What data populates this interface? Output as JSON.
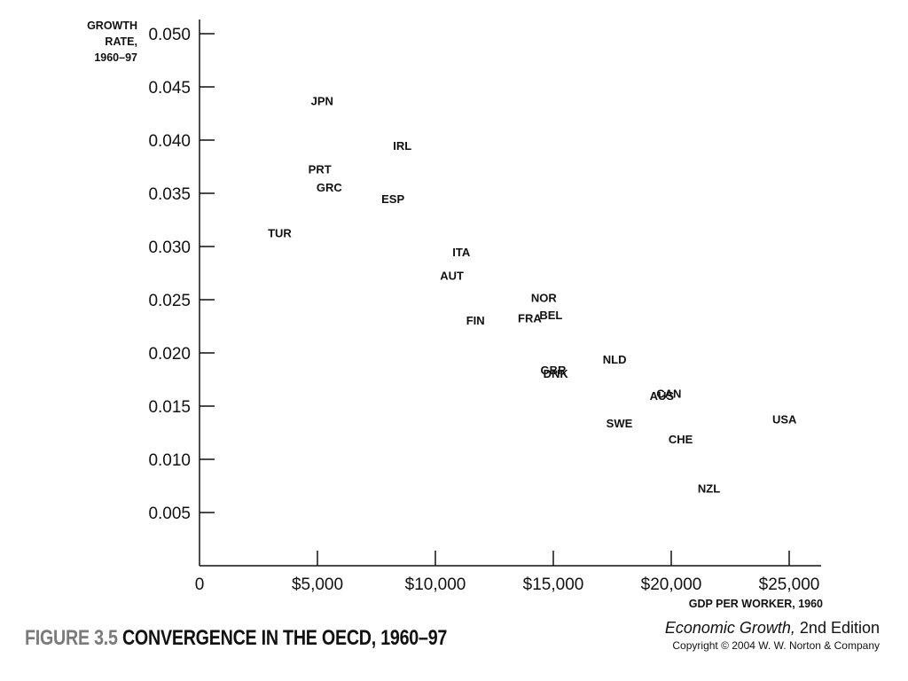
{
  "chart_data": {
    "type": "scatter",
    "title": "",
    "ylabel_lines": [
      "GROWTH",
      "RATE,",
      "1960–97"
    ],
    "xlabel": "GDP PER WORKER, 1960",
    "xlim": [
      0,
      26000
    ],
    "ylim": [
      0,
      0.05
    ],
    "grid": false,
    "x_ticks": [
      {
        "value": 0,
        "label": "0"
      },
      {
        "value": 5000,
        "label": "$5,000"
      },
      {
        "value": 10000,
        "label": "$10,000"
      },
      {
        "value": 15000,
        "label": "$15,000"
      },
      {
        "value": 20000,
        "label": "$20,000"
      },
      {
        "value": 25000,
        "label": "$25,000"
      }
    ],
    "y_ticks": [
      {
        "value": 0.005,
        "label": "0.005"
      },
      {
        "value": 0.01,
        "label": "0.010"
      },
      {
        "value": 0.015,
        "label": "0.015"
      },
      {
        "value": 0.02,
        "label": "0.020"
      },
      {
        "value": 0.025,
        "label": "0.025"
      },
      {
        "value": 0.03,
        "label": "0.030"
      },
      {
        "value": 0.035,
        "label": "0.035"
      },
      {
        "value": 0.04,
        "label": "0.040"
      },
      {
        "value": 0.045,
        "label": "0.045"
      },
      {
        "value": 0.05,
        "label": "0.050"
      }
    ],
    "points": [
      {
        "label": "JPN",
        "x": 5200,
        "y": 0.0437
      },
      {
        "label": "IRL",
        "x": 8600,
        "y": 0.0395
      },
      {
        "label": "PRT",
        "x": 5100,
        "y": 0.0373
      },
      {
        "label": "GRC",
        "x": 5500,
        "y": 0.0356
      },
      {
        "label": "ESP",
        "x": 8200,
        "y": 0.0345
      },
      {
        "label": "TUR",
        "x": 3400,
        "y": 0.0313
      },
      {
        "label": "ITA",
        "x": 11100,
        "y": 0.0295
      },
      {
        "label": "AUT",
        "x": 10700,
        "y": 0.0273
      },
      {
        "label": "NOR",
        "x": 14600,
        "y": 0.0252
      },
      {
        "label": "FIN",
        "x": 11700,
        "y": 0.0231
      },
      {
        "label": "FRA",
        "x": 14000,
        "y": 0.0233
      },
      {
        "label": "BEL",
        "x": 14900,
        "y": 0.0236
      },
      {
        "label": "NLD",
        "x": 17600,
        "y": 0.0194
      },
      {
        "label": "GBR",
        "x": 15000,
        "y": 0.0184
      },
      {
        "label": "DNK",
        "x": 15100,
        "y": 0.0181
      },
      {
        "label": "CAN",
        "x": 19900,
        "y": 0.0162
      },
      {
        "label": "AUS",
        "x": 19600,
        "y": 0.016
      },
      {
        "label": "USA",
        "x": 24800,
        "y": 0.0138
      },
      {
        "label": "SWE",
        "x": 17800,
        "y": 0.0134
      },
      {
        "label": "CHE",
        "x": 20400,
        "y": 0.0119
      },
      {
        "label": "NZL",
        "x": 21600,
        "y": 0.0073
      }
    ]
  },
  "caption": {
    "figure_number": "FIGURE 3.5",
    "figure_title": "CONVERGENCE IN THE OECD, 1960–97"
  },
  "source": {
    "book_title": "Economic Growth,",
    "edition": "2nd Edition",
    "copyright": "Copyright © 2004 W. W. Norton & Company"
  }
}
